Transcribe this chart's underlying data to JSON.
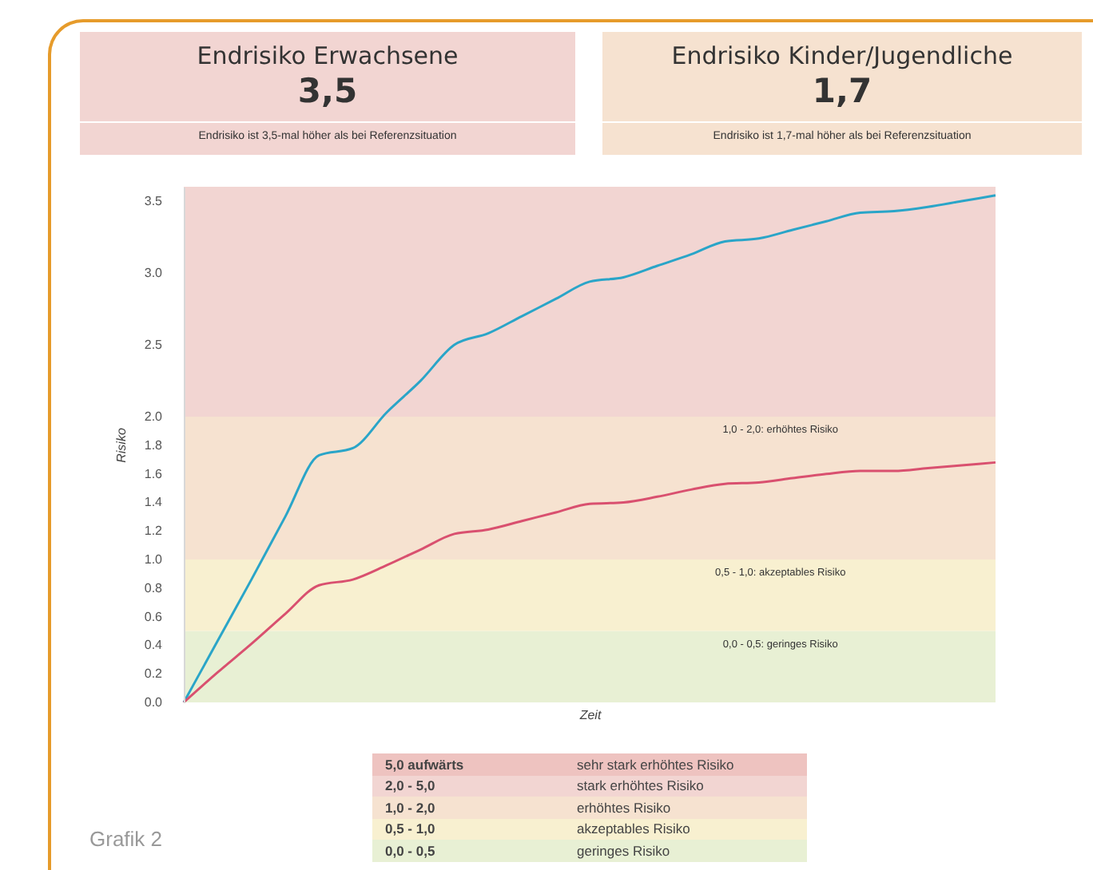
{
  "chart_data": [
    {
      "type": "other",
      "title": "Endrisiko Erwachsene",
      "subtitle": "3,5",
      "annotations": [
        "Endrisiko ist 3,5-mal höher als bei Referenzsituation"
      ],
      "color": "#f2d5d2"
    },
    {
      "type": "other",
      "title": "Endrisiko Kinder/Jugendliche",
      "subtitle": "1,7",
      "annotations": [
        "Endrisiko ist 1,7-mal höher als bei Referenzsituation"
      ],
      "color": "#f6e2d0"
    },
    {
      "type": "line",
      "xlabel": "Zeit",
      "ylabel": "Risiko",
      "categories": [
        null,
        null,
        null,
        null,
        null,
        null,
        null,
        null,
        null,
        null,
        null,
        null,
        null,
        null,
        null,
        null,
        null,
        null,
        null,
        null,
        null,
        null,
        null,
        null,
        null
      ],
      "series": [
        {
          "color": "#2aa5c8",
          "values": [
            0,
            0.43,
            0.86,
            1.3,
            1.73,
            1.78,
            2.03,
            2.25,
            2.5,
            2.58,
            2.7,
            2.82,
            2.94,
            2.97,
            3.05,
            3.13,
            3.22,
            3.24,
            3.3,
            3.36,
            3.42,
            3.43,
            3.46,
            3.5,
            3.54
          ]
        },
        {
          "color": "#d9506f",
          "values": [
            0,
            0.21,
            0.41,
            0.62,
            0.82,
            0.86,
            0.96,
            1.07,
            1.18,
            1.21,
            1.27,
            1.33,
            1.39,
            1.4,
            1.44,
            1.49,
            1.53,
            1.54,
            1.57,
            1.6,
            1.62,
            1.62,
            1.64,
            1.66,
            1.68
          ]
        }
      ],
      "ylim": [
        0,
        3.6
      ],
      "yticks": [
        {
          "value": 0,
          "label": "0.0"
        },
        0.2,
        0.4,
        0.6,
        0.8,
        {
          "value": 1,
          "label": "1.0"
        },
        1.2,
        1.4,
        1.6,
        1.8,
        {
          "value": 2,
          "label": "2.0"
        },
        2.5,
        {
          "value": 3,
          "label": "3.0"
        },
        3.5
      ],
      "bands": [
        {
          "axis": "y",
          "from": 0,
          "to": 0.5,
          "label": "0,0 - 0,5: geringes Risiko",
          "color": "#e8f0d4"
        },
        {
          "axis": "y",
          "from": 0.5,
          "to": 1,
          "label": "0,5 - 1,0: akzeptables Risiko",
          "color": "#f8f0d0"
        },
        {
          "axis": "y",
          "from": 1,
          "to": 2,
          "label": "1,0 - 2,0: erhöhtes Risiko",
          "color": "#f6e2d0"
        },
        {
          "axis": "y",
          "from": 2,
          "to": 3.6,
          "color": "#f2d5d2"
        }
      ],
      "grid": false,
      "annotations": [
        "Grafik 2"
      ]
    },
    {
      "type": "other",
      "categories": [
        "5,0 aufwärts",
        "2,0 - 5,0",
        "1,0 - 2,0",
        "0,5 - 1,0",
        "0,0 - 0,5"
      ],
      "annotations": [
        "sehr stark erhöhtes Risiko",
        "stark erhöhtes Risiko",
        "erhöhtes Risiko",
        "akzeptables Risiko",
        "geringes Risiko"
      ],
      "colors": [
        "#eec3c0",
        "#f2d5d2",
        "#f6e2d0",
        "#f8f0d0",
        "#e8f0d4"
      ]
    }
  ]
}
